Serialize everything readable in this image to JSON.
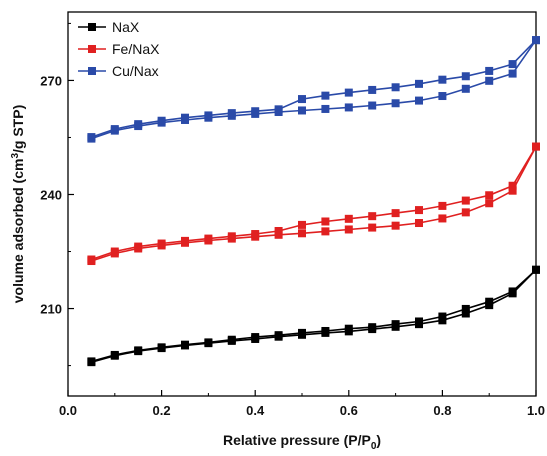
{
  "chart_data": {
    "type": "line",
    "title": "",
    "xlabel": "Relative pressure (P/P0)",
    "xlabel_parts": {
      "main": "Relative pressure (P/P",
      "sub": "0",
      "tail": ")"
    },
    "ylabel": "volume adsorbed (cm3/g STP)",
    "ylabel_parts": {
      "main": "volume adsorbed (cm",
      "sup": "3",
      "tail": "/g STP)"
    },
    "xlim": [
      0.0,
      1.0
    ],
    "ylim": [
      187,
      288
    ],
    "xticks": [
      0.0,
      0.2,
      0.4,
      0.6,
      0.8,
      1.0
    ],
    "xtick_labels": [
      "0.0",
      "0.2",
      "0.4",
      "0.6",
      "0.8",
      "1.0"
    ],
    "yticks": [
      210,
      240,
      270
    ],
    "ytick_labels": [
      "210",
      "240",
      "270"
    ],
    "grid": false,
    "legend_position": "top-left",
    "series": [
      {
        "name": "NaX",
        "color": "#000000",
        "marker": "square",
        "adsorption": {
          "x": [
            0.05,
            0.1,
            0.15,
            0.2,
            0.25,
            0.3,
            0.35,
            0.4,
            0.45,
            0.5,
            0.55,
            0.6,
            0.65,
            0.7,
            0.75,
            0.8,
            0.85,
            0.9,
            0.95,
            1.0
          ],
          "y": [
            195.9,
            197.6,
            198.8,
            199.6,
            200.3,
            200.9,
            201.5,
            202.0,
            202.6,
            203.1,
            203.6,
            204.0,
            204.6,
            205.2,
            205.9,
            206.9,
            208.7,
            210.9,
            214.0,
            220.2
          ]
        },
        "desorption": {
          "x": [
            1.0,
            0.95,
            0.9,
            0.85,
            0.8,
            0.75,
            0.7,
            0.65,
            0.6,
            0.55,
            0.5,
            0.45,
            0.4,
            0.35,
            0.3,
            0.25,
            0.2,
            0.15,
            0.1,
            0.05
          ],
          "y": [
            220.2,
            214.5,
            211.8,
            209.9,
            207.9,
            206.6,
            205.9,
            205.1,
            204.7,
            204.1,
            203.6,
            203.0,
            202.5,
            201.8,
            201.1,
            200.5,
            199.8,
            199.0,
            197.8,
            196.1
          ]
        }
      },
      {
        "name": "Fe/NaX",
        "color": "#e02020",
        "marker": "square",
        "adsorption": {
          "x": [
            0.05,
            0.1,
            0.15,
            0.2,
            0.25,
            0.3,
            0.35,
            0.4,
            0.45,
            0.5,
            0.55,
            0.6,
            0.65,
            0.7,
            0.75,
            0.8,
            0.85,
            0.9,
            0.95,
            1.0
          ],
          "y": [
            222.5,
            224.5,
            225.8,
            226.6,
            227.3,
            227.9,
            228.4,
            228.9,
            229.4,
            229.8,
            230.3,
            230.8,
            231.3,
            231.8,
            232.5,
            233.7,
            235.3,
            237.7,
            241.0,
            252.6
          ]
        },
        "desorption": {
          "x": [
            1.0,
            0.95,
            0.9,
            0.85,
            0.8,
            0.75,
            0.7,
            0.65,
            0.6,
            0.55,
            0.5,
            0.45,
            0.4,
            0.35,
            0.3,
            0.25,
            0.2,
            0.15,
            0.1,
            0.05
          ],
          "y": [
            252.6,
            242.3,
            239.8,
            238.4,
            237.0,
            235.9,
            235.1,
            234.3,
            233.6,
            232.9,
            232.0,
            230.4,
            229.6,
            229.0,
            228.4,
            227.8,
            227.1,
            226.3,
            225.0,
            222.9
          ]
        }
      },
      {
        "name": "Cu/Nax",
        "color": "#2a4aa8",
        "marker": "square",
        "adsorption": {
          "x": [
            0.05,
            0.1,
            0.15,
            0.2,
            0.25,
            0.3,
            0.35,
            0.4,
            0.45,
            0.5,
            0.55,
            0.6,
            0.65,
            0.7,
            0.75,
            0.8,
            0.85,
            0.9,
            0.95,
            1.0
          ],
          "y": [
            254.7,
            256.8,
            258.0,
            258.9,
            259.6,
            260.2,
            260.7,
            261.2,
            261.7,
            262.1,
            262.5,
            262.9,
            263.4,
            264.0,
            264.7,
            265.9,
            267.8,
            269.9,
            271.8,
            280.6
          ]
        },
        "desorption": {
          "x": [
            1.0,
            0.95,
            0.9,
            0.85,
            0.8,
            0.75,
            0.7,
            0.65,
            0.6,
            0.55,
            0.5,
            0.45,
            0.4,
            0.35,
            0.3,
            0.25,
            0.2,
            0.15,
            0.1,
            0.05
          ],
          "y": [
            280.6,
            274.3,
            272.5,
            271.1,
            270.2,
            269.1,
            268.2,
            267.5,
            266.8,
            266.0,
            265.1,
            262.4,
            261.9,
            261.4,
            260.8,
            260.2,
            259.4,
            258.5,
            257.2,
            255.1
          ]
        }
      }
    ]
  }
}
